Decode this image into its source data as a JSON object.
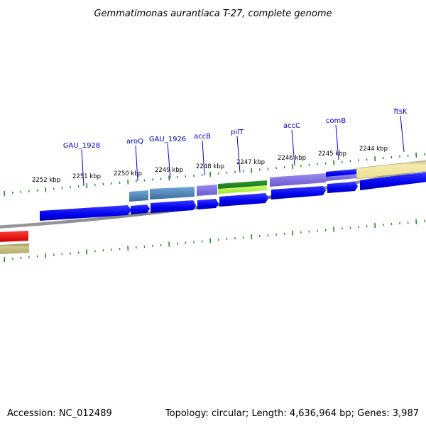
{
  "title": "Gemmatimonas aurantiaca T-27, complete genome",
  "accession": "Accession: NC_012489",
  "summary": "Topology: circular; Length: 4,636,964 bp; Genes: 3,987",
  "scale_labels": [
    "2252 kbp",
    "2251 kbp",
    "2250 kbp",
    "2249 kbp",
    "2248 kbp",
    "2247 kbp",
    "2246 kbp",
    "2245 kbp",
    "2244 kbp"
  ],
  "gene_labels": [
    "GAU_1928",
    "aroQ",
    "GAU_1926",
    "accB",
    "pilT",
    "accC",
    "comB",
    "ftsK"
  ],
  "colors": {
    "backbone": "#808080",
    "tick": "#1e8c1e",
    "cds": "#0000ee",
    "gene_label": "#0000cc",
    "steelblue": "#4682b4",
    "slateblue": "#7b68ee",
    "green": "#228b22",
    "lightgreen": "#adff2f",
    "khaki": "#f0e68c",
    "red": "#ff0000",
    "olive": "#b8b26a"
  }
}
